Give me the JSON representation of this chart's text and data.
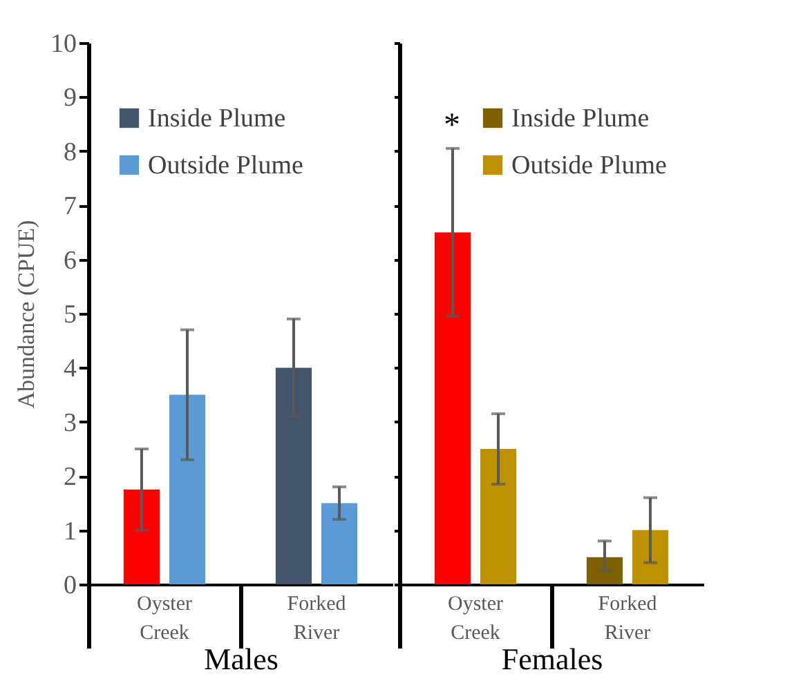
{
  "chart_data": [
    {
      "type": "bar",
      "xlabel": "Males",
      "ylabel": "Abundance (CPUE)",
      "categories": [
        "Oyster Creek",
        "Forked River"
      ],
      "ylim": [
        0,
        10
      ],
      "yticks": [
        0,
        1,
        2,
        3,
        4,
        5,
        6,
        7,
        8,
        9,
        10
      ],
      "grid": false,
      "legend": "top left",
      "series": [
        {
          "name": "Inside Plume",
          "color": "#44546a",
          "colors": [
            "#ff0000",
            "#44546a"
          ],
          "values": [
            1.75,
            4.0
          ],
          "errors": [
            [
              1.0,
              2.5
            ],
            [
              3.1,
              4.9
            ]
          ]
        },
        {
          "name": "Outside Plume",
          "color": "#5b9bd5",
          "values": [
            3.5,
            1.5
          ],
          "errors": [
            [
              2.3,
              4.7
            ],
            [
              1.2,
              1.8
            ]
          ]
        }
      ]
    },
    {
      "type": "bar",
      "xlabel": "Females",
      "categories": [
        "Oyster Creek",
        "Forked River"
      ],
      "ylim": [
        0,
        10
      ],
      "yticks": [
        0,
        1,
        2,
        3,
        4,
        5,
        6,
        7,
        8,
        9,
        10
      ],
      "tick_labels": "x",
      "grid": false,
      "legend": "top right",
      "annotations": [
        "*"
      ],
      "series": [
        {
          "name": "Inside Plume",
          "color": "#7f6000",
          "colors": [
            "#ff0000",
            "#7f6000"
          ],
          "values": [
            6.5,
            0.5
          ],
          "errors": [
            [
              4.95,
              8.05
            ],
            [
              0.25,
              0.8
            ]
          ]
        },
        {
          "name": "Outside Plume",
          "color": "#bf9000",
          "values": [
            2.5,
            1.0
          ],
          "errors": [
            [
              1.85,
              3.15
            ],
            [
              0.4,
              1.6
            ]
          ]
        }
      ]
    }
  ]
}
